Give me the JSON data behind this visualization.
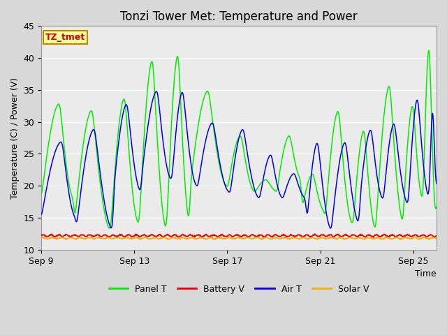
{
  "title": "Tonzi Tower Met: Temperature and Power",
  "xlabel": "Time",
  "ylabel": "Temperature (C) / Power (V)",
  "xlim_days": [
    0,
    17
  ],
  "ylim": [
    10,
    45
  ],
  "yticks": [
    10,
    15,
    20,
    25,
    30,
    35,
    40,
    45
  ],
  "xtick_labels": [
    "Sep 9",
    "Sep 13",
    "Sep 17",
    "Sep 21",
    "Sep 25"
  ],
  "xtick_positions": [
    0,
    4,
    8,
    12,
    16
  ],
  "bg_color": "#d8d8d8",
  "plot_bg_color": "#ebebeb",
  "grid_color": "#ffffff",
  "annotation_text": "TZ_tmet",
  "annotation_box_color": "#ffff99",
  "annotation_border_color": "#bb8800",
  "annotation_text_color": "#cc0000",
  "colors": {
    "Panel T": "#00ee00",
    "Battery V": "#ee0000",
    "Air T": "#0000ee",
    "Solar V": "#ffaa00"
  },
  "title_fontsize": 12,
  "axis_label_fontsize": 9,
  "tick_fontsize": 9,
  "legend_fontsize": 9
}
